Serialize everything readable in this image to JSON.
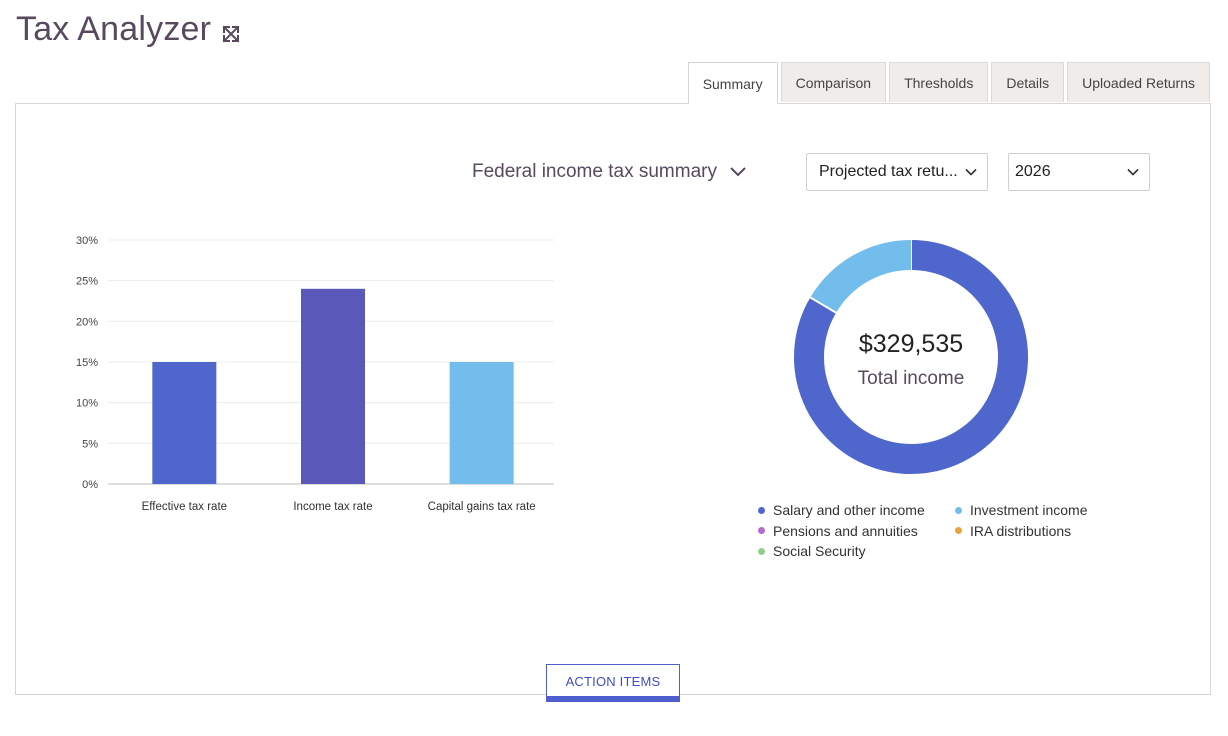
{
  "app": {
    "title": "Tax Analyzer",
    "expand_icon": "expand-arrows-icon"
  },
  "tabs": [
    {
      "label": "Summary",
      "active": true
    },
    {
      "label": "Comparison",
      "active": false
    },
    {
      "label": "Thresholds",
      "active": false
    },
    {
      "label": "Details",
      "active": false
    },
    {
      "label": "Uploaded Returns",
      "active": false
    }
  ],
  "toolbar": {
    "summary_label": "Federal income tax summary",
    "return_type": "Projected tax retu...",
    "year": "2026"
  },
  "chart_data": [
    {
      "type": "bar",
      "categories": [
        "Effective tax rate",
        "Income tax rate",
        "Capital gains tax rate"
      ],
      "values": [
        15,
        24,
        15
      ],
      "colors": [
        "#4f66cc",
        "#5a58b8",
        "#72bdec"
      ],
      "ylim": [
        0,
        30
      ],
      "yticks": [
        "0%",
        "5%",
        "10%",
        "15%",
        "20%",
        "25%",
        "30%"
      ],
      "grid": true
    },
    {
      "type": "pie",
      "variant": "donut",
      "center_value": "$329,535",
      "center_label": "Total income",
      "slices": [
        {
          "name": "Salary and other income",
          "value": 83.5,
          "color": "#4f66cc"
        },
        {
          "name": "Investment income",
          "value": 16.5,
          "color": "#72bdec"
        },
        {
          "name": "Pensions and annuities",
          "value": 0,
          "color": "#b06ccf"
        },
        {
          "name": "IRA distributions",
          "value": 0,
          "color": "#e8a33d"
        },
        {
          "name": "Social Security",
          "value": 0,
          "color": "#8fd08f"
        }
      ]
    }
  ],
  "action_button": {
    "label": "ACTION ITEMS"
  }
}
